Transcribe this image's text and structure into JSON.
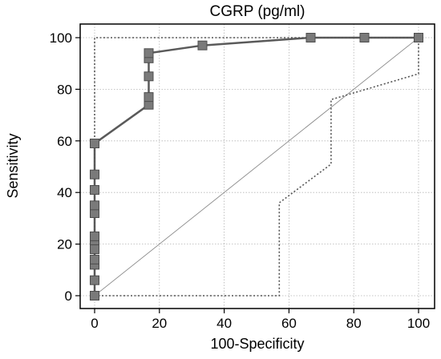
{
  "chart_data": {
    "type": "line",
    "title": "CGRP (pg/ml)",
    "xlabel": "100-Specificity",
    "ylabel": "Sensitivity",
    "xlim": [
      0,
      100
    ],
    "ylim": [
      0,
      100
    ],
    "x_ticks": [
      0,
      20,
      40,
      60,
      80,
      100
    ],
    "y_ticks": [
      0,
      20,
      40,
      60,
      80,
      100
    ],
    "grid": true,
    "series": [
      {
        "role": "roc-curve",
        "style": "solid",
        "x": [
          0,
          0,
          16.7,
          16.7,
          33.3,
          66.7,
          100
        ],
        "y": [
          0,
          59,
          74,
          94,
          97,
          100,
          100
        ]
      },
      {
        "role": "reference-diagonal",
        "style": "solid-thin",
        "x": [
          0,
          100
        ],
        "y": [
          0,
          100
        ]
      },
      {
        "role": "upper-confidence-bound",
        "style": "dotted",
        "x": [
          0,
          0,
          100
        ],
        "y": [
          0,
          100,
          100
        ]
      },
      {
        "role": "lower-confidence-bound",
        "style": "dotted",
        "x": [
          0,
          57,
          57,
          73,
          73,
          100,
          100
        ],
        "y": [
          0,
          0,
          36,
          51,
          76,
          86,
          100
        ]
      }
    ],
    "markers": {
      "x": [
        0,
        0,
        0,
        0,
        0,
        0,
        0,
        0,
        0,
        0,
        0,
        0,
        0,
        16.7,
        16.7,
        16.7,
        16.7,
        16.7,
        33.3,
        66.7,
        83.3,
        100
      ],
      "y": [
        0,
        6,
        12,
        14,
        21,
        23,
        32,
        35,
        41,
        47,
        59,
        0,
        18,
        74,
        77,
        85,
        92,
        94,
        97,
        100,
        100,
        100
      ]
    }
  }
}
